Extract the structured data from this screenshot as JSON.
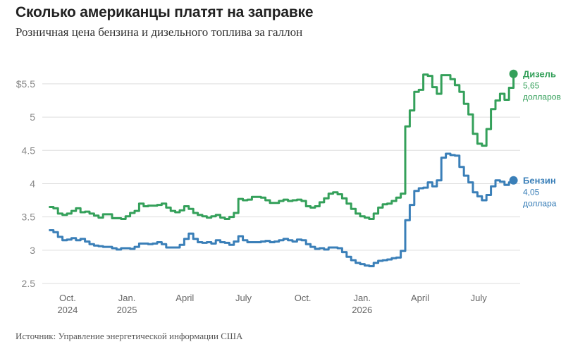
{
  "header": {
    "title": "Сколько американцы платят на заправке",
    "subtitle": "Розничная цена бензина и дизельного топлива за галлон"
  },
  "footer": {
    "source": "Источник: Управление энергетической информации США"
  },
  "colors": {
    "diesel": "#34a05a",
    "gasoline": "#3a7fb8",
    "grid": "#dddddd"
  },
  "chart_data": {
    "type": "line",
    "title": "Сколько американцы платят на заправке",
    "subtitle": "Розничная цена бензина и дизельного топлива за галлон",
    "xlabel": "",
    "ylabel": "",
    "ylim": [
      2.5,
      5.7
    ],
    "y_ticks": [
      2.5,
      3,
      3.5,
      4,
      4.5,
      5,
      5.5
    ],
    "y_tick_labels": [
      "2.5",
      "3",
      "3.5",
      "4",
      "4.5",
      "5",
      "$5.5"
    ],
    "x_ticks": [
      {
        "date": "2024-10-01",
        "label": "Oct.",
        "sublabel": "2024"
      },
      {
        "date": "2025-01-01",
        "label": "Jan.",
        "sublabel": "2025"
      },
      {
        "date": "2025-04-01",
        "label": "April",
        "sublabel": ""
      },
      {
        "date": "2025-07-01",
        "label": "July",
        "sublabel": ""
      },
      {
        "date": "2025-10-01",
        "label": "Oct.",
        "sublabel": ""
      },
      {
        "date": "2026-01-01",
        "label": "Jan.",
        "sublabel": "2026"
      },
      {
        "date": "2026-04-01",
        "label": "April",
        "sublabel": ""
      },
      {
        "date": "2026-07-01",
        "label": "July",
        "sublabel": ""
      }
    ],
    "grid": "horizontal",
    "step": true,
    "series": [
      {
        "name": "Дизель",
        "end_label_name": "Дизель",
        "end_label_value": "5,65",
        "end_label_unit": "долларов",
        "color": "#34a05a",
        "points": [
          [
            "2024-09-02",
            3.65
          ],
          [
            "2024-09-09",
            3.63
          ],
          [
            "2024-09-16",
            3.55
          ],
          [
            "2024-09-23",
            3.53
          ],
          [
            "2024-09-30",
            3.55
          ],
          [
            "2024-10-07",
            3.59
          ],
          [
            "2024-10-14",
            3.63
          ],
          [
            "2024-10-21",
            3.57
          ],
          [
            "2024-10-28",
            3.58
          ],
          [
            "2024-11-04",
            3.55
          ],
          [
            "2024-11-11",
            3.52
          ],
          [
            "2024-11-18",
            3.49
          ],
          [
            "2024-11-25",
            3.54
          ],
          [
            "2024-12-02",
            3.54
          ],
          [
            "2024-12-09",
            3.48
          ],
          [
            "2024-12-16",
            3.48
          ],
          [
            "2024-12-23",
            3.47
          ],
          [
            "2024-12-30",
            3.51
          ],
          [
            "2025-01-06",
            3.56
          ],
          [
            "2025-01-13",
            3.59
          ],
          [
            "2025-01-20",
            3.7
          ],
          [
            "2025-01-27",
            3.66
          ],
          [
            "2025-02-03",
            3.67
          ],
          [
            "2025-02-10",
            3.67
          ],
          [
            "2025-02-17",
            3.68
          ],
          [
            "2025-02-24",
            3.7
          ],
          [
            "2025-03-03",
            3.64
          ],
          [
            "2025-03-10",
            3.59
          ],
          [
            "2025-03-17",
            3.57
          ],
          [
            "2025-03-24",
            3.6
          ],
          [
            "2025-03-31",
            3.66
          ],
          [
            "2025-04-07",
            3.62
          ],
          [
            "2025-04-14",
            3.56
          ],
          [
            "2025-04-21",
            3.53
          ],
          [
            "2025-04-28",
            3.51
          ],
          [
            "2025-05-05",
            3.49
          ],
          [
            "2025-05-12",
            3.51
          ],
          [
            "2025-05-19",
            3.53
          ],
          [
            "2025-05-26",
            3.49
          ],
          [
            "2025-06-02",
            3.47
          ],
          [
            "2025-06-09",
            3.5
          ],
          [
            "2025-06-16",
            3.56
          ],
          [
            "2025-06-23",
            3.77
          ],
          [
            "2025-06-30",
            3.75
          ],
          [
            "2025-07-07",
            3.76
          ],
          [
            "2025-07-14",
            3.8
          ],
          [
            "2025-07-21",
            3.8
          ],
          [
            "2025-07-28",
            3.79
          ],
          [
            "2025-08-04",
            3.75
          ],
          [
            "2025-08-11",
            3.71
          ],
          [
            "2025-08-18",
            3.71
          ],
          [
            "2025-08-25",
            3.74
          ],
          [
            "2025-09-01",
            3.76
          ],
          [
            "2025-09-08",
            3.74
          ],
          [
            "2025-09-15",
            3.75
          ],
          [
            "2025-09-22",
            3.76
          ],
          [
            "2025-09-29",
            3.74
          ],
          [
            "2025-10-06",
            3.66
          ],
          [
            "2025-10-13",
            3.64
          ],
          [
            "2025-10-20",
            3.66
          ],
          [
            "2025-10-27",
            3.72
          ],
          [
            "2025-11-03",
            3.78
          ],
          [
            "2025-11-10",
            3.85
          ],
          [
            "2025-11-17",
            3.87
          ],
          [
            "2025-11-24",
            3.84
          ],
          [
            "2025-12-01",
            3.78
          ],
          [
            "2025-12-08",
            3.7
          ],
          [
            "2025-12-15",
            3.62
          ],
          [
            "2025-12-22",
            3.55
          ],
          [
            "2025-12-29",
            3.51
          ],
          [
            "2026-01-05",
            3.49
          ],
          [
            "2026-01-12",
            3.47
          ],
          [
            "2026-01-19",
            3.55
          ],
          [
            "2026-01-26",
            3.64
          ],
          [
            "2026-02-02",
            3.69
          ],
          [
            "2026-02-09",
            3.7
          ],
          [
            "2026-02-16",
            3.74
          ],
          [
            "2026-02-23",
            3.79
          ],
          [
            "2026-03-02",
            3.85
          ],
          [
            "2026-03-09",
            4.86
          ],
          [
            "2026-03-16",
            5.1
          ],
          [
            "2026-03-23",
            5.38
          ],
          [
            "2026-03-30",
            5.41
          ],
          [
            "2026-04-06",
            5.64
          ],
          [
            "2026-04-13",
            5.62
          ],
          [
            "2026-04-20",
            5.45
          ],
          [
            "2026-04-27",
            5.35
          ],
          [
            "2026-05-04",
            5.63
          ],
          [
            "2026-05-11",
            5.63
          ],
          [
            "2026-05-18",
            5.57
          ],
          [
            "2026-05-25",
            5.48
          ],
          [
            "2026-06-01",
            5.38
          ],
          [
            "2026-06-08",
            5.2
          ],
          [
            "2026-06-15",
            5.04
          ],
          [
            "2026-06-22",
            4.75
          ],
          [
            "2026-06-29",
            4.6
          ],
          [
            "2026-07-06",
            4.57
          ],
          [
            "2026-07-13",
            4.82
          ],
          [
            "2026-07-20",
            5.12
          ],
          [
            "2026-07-27",
            5.25
          ],
          [
            "2026-08-03",
            5.35
          ],
          [
            "2026-08-10",
            5.26
          ],
          [
            "2026-08-17",
            5.44
          ],
          [
            "2026-08-24",
            5.65
          ]
        ]
      },
      {
        "name": "Бензин",
        "end_label_name": "Бензин",
        "end_label_value": "4,05",
        "end_label_unit": "доллара",
        "color": "#3a7fb8",
        "points": [
          [
            "2024-09-02",
            3.3
          ],
          [
            "2024-09-09",
            3.27
          ],
          [
            "2024-09-16",
            3.2
          ],
          [
            "2024-09-23",
            3.15
          ],
          [
            "2024-09-30",
            3.16
          ],
          [
            "2024-10-07",
            3.18
          ],
          [
            "2024-10-14",
            3.15
          ],
          [
            "2024-10-21",
            3.17
          ],
          [
            "2024-10-28",
            3.13
          ],
          [
            "2024-11-04",
            3.09
          ],
          [
            "2024-11-11",
            3.07
          ],
          [
            "2024-11-18",
            3.06
          ],
          [
            "2024-11-25",
            3.05
          ],
          [
            "2024-12-02",
            3.05
          ],
          [
            "2024-12-09",
            3.03
          ],
          [
            "2024-12-16",
            3.01
          ],
          [
            "2024-12-23",
            3.03
          ],
          [
            "2024-12-30",
            3.03
          ],
          [
            "2025-01-06",
            3.02
          ],
          [
            "2025-01-13",
            3.05
          ],
          [
            "2025-01-20",
            3.1
          ],
          [
            "2025-01-27",
            3.1
          ],
          [
            "2025-02-03",
            3.09
          ],
          [
            "2025-02-10",
            3.1
          ],
          [
            "2025-02-17",
            3.12
          ],
          [
            "2025-02-24",
            3.09
          ],
          [
            "2025-03-03",
            3.04
          ],
          [
            "2025-03-10",
            3.04
          ],
          [
            "2025-03-17",
            3.04
          ],
          [
            "2025-03-24",
            3.08
          ],
          [
            "2025-03-31",
            3.17
          ],
          [
            "2025-04-07",
            3.25
          ],
          [
            "2025-04-14",
            3.17
          ],
          [
            "2025-04-21",
            3.12
          ],
          [
            "2025-04-28",
            3.11
          ],
          [
            "2025-05-05",
            3.12
          ],
          [
            "2025-05-12",
            3.1
          ],
          [
            "2025-05-19",
            3.15
          ],
          [
            "2025-05-26",
            3.12
          ],
          [
            "2025-06-02",
            3.11
          ],
          [
            "2025-06-09",
            3.08
          ],
          [
            "2025-06-16",
            3.13
          ],
          [
            "2025-06-23",
            3.21
          ],
          [
            "2025-06-30",
            3.15
          ],
          [
            "2025-07-07",
            3.12
          ],
          [
            "2025-07-14",
            3.12
          ],
          [
            "2025-07-21",
            3.12
          ],
          [
            "2025-07-28",
            3.13
          ],
          [
            "2025-08-04",
            3.14
          ],
          [
            "2025-08-11",
            3.12
          ],
          [
            "2025-08-18",
            3.13
          ],
          [
            "2025-08-25",
            3.15
          ],
          [
            "2025-09-01",
            3.17
          ],
          [
            "2025-09-08",
            3.15
          ],
          [
            "2025-09-15",
            3.13
          ],
          [
            "2025-09-22",
            3.16
          ],
          [
            "2025-09-29",
            3.15
          ],
          [
            "2025-10-06",
            3.09
          ],
          [
            "2025-10-13",
            3.05
          ],
          [
            "2025-10-20",
            3.02
          ],
          [
            "2025-10-27",
            3.03
          ],
          [
            "2025-11-03",
            3.01
          ],
          [
            "2025-11-10",
            3.04
          ],
          [
            "2025-11-17",
            3.04
          ],
          [
            "2025-11-24",
            3.03
          ],
          [
            "2025-12-01",
            2.97
          ],
          [
            "2025-12-08",
            2.9
          ],
          [
            "2025-12-15",
            2.85
          ],
          [
            "2025-12-22",
            2.81
          ],
          [
            "2025-12-29",
            2.79
          ],
          [
            "2026-01-05",
            2.77
          ],
          [
            "2026-01-12",
            2.76
          ],
          [
            "2026-01-19",
            2.81
          ],
          [
            "2026-01-26",
            2.84
          ],
          [
            "2026-02-02",
            2.85
          ],
          [
            "2026-02-09",
            2.86
          ],
          [
            "2026-02-16",
            2.88
          ],
          [
            "2026-02-23",
            2.89
          ],
          [
            "2026-03-02",
            2.99
          ],
          [
            "2026-03-09",
            3.45
          ],
          [
            "2026-03-16",
            3.68
          ],
          [
            "2026-03-23",
            3.89
          ],
          [
            "2026-03-30",
            3.93
          ],
          [
            "2026-04-06",
            3.94
          ],
          [
            "2026-04-13",
            4.02
          ],
          [
            "2026-04-20",
            3.96
          ],
          [
            "2026-04-27",
            4.05
          ],
          [
            "2026-05-04",
            4.39
          ],
          [
            "2026-05-11",
            4.45
          ],
          [
            "2026-05-18",
            4.43
          ],
          [
            "2026-05-25",
            4.42
          ],
          [
            "2026-06-01",
            4.25
          ],
          [
            "2026-06-08",
            4.12
          ],
          [
            "2026-06-15",
            4.02
          ],
          [
            "2026-06-22",
            3.87
          ],
          [
            "2026-06-29",
            3.81
          ],
          [
            "2026-07-06",
            3.75
          ],
          [
            "2026-07-13",
            3.83
          ],
          [
            "2026-07-20",
            3.96
          ],
          [
            "2026-07-27",
            4.05
          ],
          [
            "2026-08-03",
            4.03
          ],
          [
            "2026-08-10",
            3.98
          ],
          [
            "2026-08-17",
            4.02
          ],
          [
            "2026-08-24",
            4.05
          ]
        ]
      }
    ]
  }
}
